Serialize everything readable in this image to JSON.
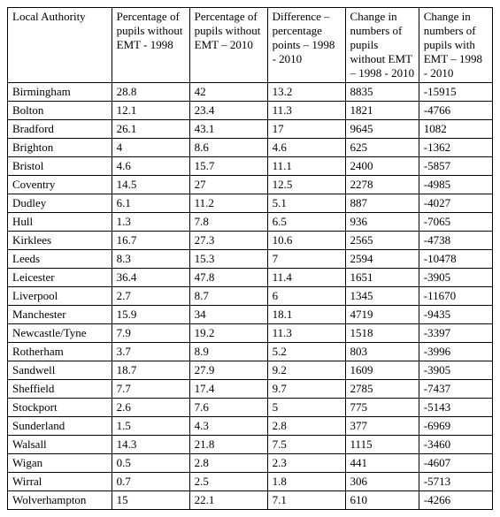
{
  "table": {
    "columns": [
      "Local Authority",
      "Percentage of pupils without EMT - 1998",
      "Percentage of pupils without EMT – 2010",
      "Difference – percentage points – 1998 - 2010",
      "Change in numbers of pupils without EMT – 1998 - 2010",
      "Change in numbers of pupils with EMT – 1998 - 2010"
    ],
    "rows": [
      [
        "Birmingham",
        "28.8",
        "42",
        "13.2",
        "8835",
        "-15915"
      ],
      [
        "Bolton",
        "12.1",
        "23.4",
        "11.3",
        "1821",
        "-4766"
      ],
      [
        "Bradford",
        "26.1",
        "43.1",
        "17",
        "9645",
        "1082"
      ],
      [
        "Brighton",
        "4",
        "8.6",
        "4.6",
        "625",
        "-1362"
      ],
      [
        "Bristol",
        "4.6",
        "15.7",
        "11.1",
        "2400",
        "-5857"
      ],
      [
        "Coventry",
        "14.5",
        "27",
        "12.5",
        "2278",
        "-4985"
      ],
      [
        "Dudley",
        "6.1",
        "11.2",
        "5.1",
        "887",
        "-4027"
      ],
      [
        "Hull",
        "1.3",
        "7.8",
        "6.5",
        "936",
        "-7065"
      ],
      [
        "Kirklees",
        "16.7",
        "27.3",
        "10.6",
        "2565",
        "-4738"
      ],
      [
        "Leeds",
        "8.3",
        "15.3",
        "7",
        "2594",
        "-10478"
      ],
      [
        "Leicester",
        "36.4",
        "47.8",
        "11.4",
        "1651",
        "-3905"
      ],
      [
        "Liverpool",
        "2.7",
        "8.7",
        "6",
        "1345",
        "-11670"
      ],
      [
        "Manchester",
        "15.9",
        "34",
        "18.1",
        "4719",
        "-9435"
      ],
      [
        "Newcastle/Tyne",
        "7.9",
        "19.2",
        "11.3",
        "1518",
        "-3397"
      ],
      [
        "Rotherham",
        "3.7",
        "8.9",
        "5.2",
        "803",
        "-3996"
      ],
      [
        "Sandwell",
        "18.7",
        "27.9",
        "9.2",
        "1609",
        "-3905"
      ],
      [
        "Sheffield",
        "7.7",
        "17.4",
        "9.7",
        "2785",
        "-7437"
      ],
      [
        "Stockport",
        "2.6",
        "7.6",
        "5",
        "775",
        "-5143"
      ],
      [
        "Sunderland",
        "1.5",
        "4.3",
        "2.8",
        "377",
        "-6969"
      ],
      [
        "Walsall",
        "14.3",
        "21.8",
        "7.5",
        "1115",
        "-3460"
      ],
      [
        "Wigan",
        "0.5",
        "2.8",
        "2.3",
        "441",
        "-4607"
      ],
      [
        "Wirral",
        "0.7",
        "2.5",
        "1.8",
        "306",
        "-5713"
      ],
      [
        "Wolverhampton",
        "15",
        "22.1",
        "7.1",
        "610",
        "-4266"
      ]
    ]
  }
}
